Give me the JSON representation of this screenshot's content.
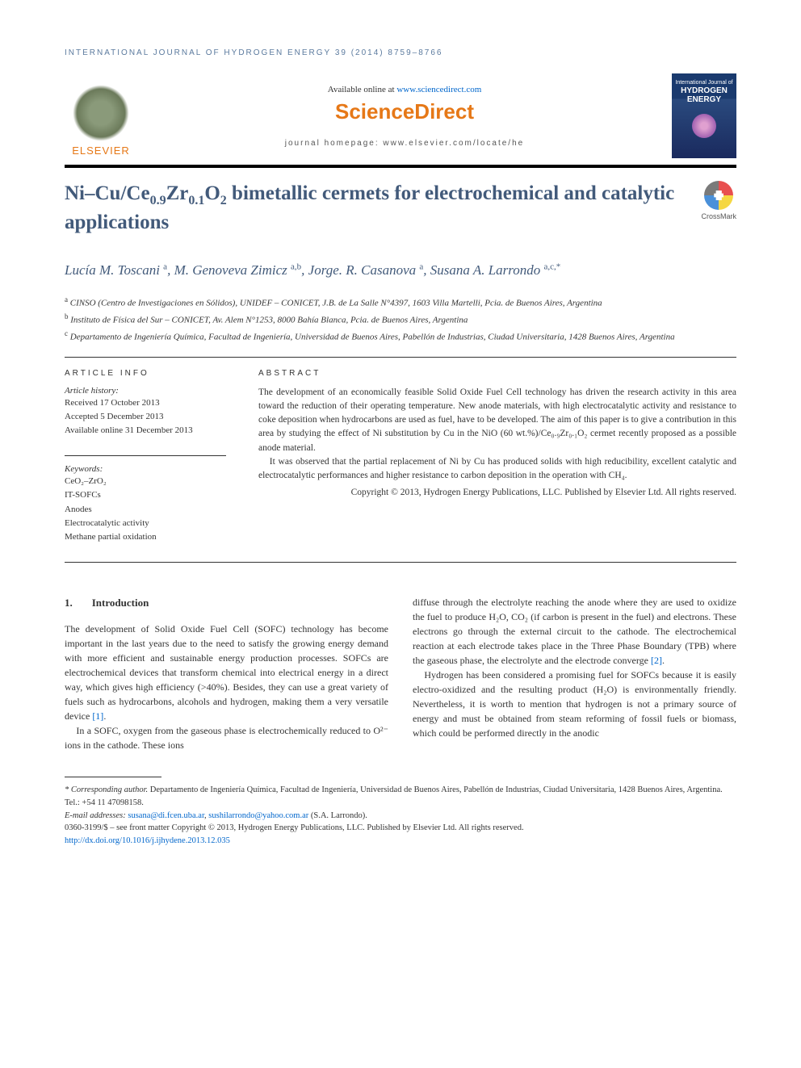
{
  "header": {
    "journal_ref": "INTERNATIONAL JOURNAL OF HYDROGEN ENERGY 39 (2014) 8759–8766",
    "available_prefix": "Available online at ",
    "available_link": "www.sciencedirect.com",
    "sciencedirect": "ScienceDirect",
    "homepage_label": "journal homepage: www.elsevier.com/locate/he",
    "elsevier": "ELSEVIER",
    "cover_top": "International Journal of",
    "cover_title1": "HYDROGEN",
    "cover_title2": "ENERGY"
  },
  "crossmark": {
    "label": "CrossMark"
  },
  "title": {
    "html": "Ni–Cu/Ce<sub>0.9</sub>Zr<sub>0.1</sub>O<sub>2</sub> bimetallic cermets for electrochemical and catalytic applications"
  },
  "authors_html": "Lucía M. Toscani <sup>a</sup>, M. Genoveva Zimicz <sup>a,b</sup>, Jorge. R. Casanova <sup>a</sup>, Susana A. Larrondo <sup>a,c,*</sup>",
  "affiliations": [
    "<sup>a</sup> CINSO (Centro de Investigaciones en Sólidos), UNIDEF – CONICET, J.B. de La Salle N°4397, 1603 Villa Martelli, Pcia. de Buenos Aires, Argentina",
    "<sup>b</sup> Instituto de Física del Sur – CONICET, Av. Alem N°1253, 8000 Bahía Blanca, Pcia. de Buenos Aires, Argentina",
    "<sup>c</sup> Departamento de Ingeniería Química, Facultad de Ingeniería, Universidad de Buenos Aires, Pabellón de Industrias, Ciudad Universitaria, 1428 Buenos Aires, Argentina"
  ],
  "article_info": {
    "heading": "ARTICLE INFO",
    "history_label": "Article history:",
    "received": "Received 17 October 2013",
    "accepted": "Accepted 5 December 2013",
    "online": "Available online 31 December 2013",
    "keywords_label": "Keywords:",
    "keywords": [
      "CeO₂–ZrO₂",
      "IT-SOFCs",
      "Anodes",
      "Electrocatalytic activity",
      "Methane partial oxidation"
    ]
  },
  "abstract": {
    "heading": "ABSTRACT",
    "p1": "The development of an economically feasible Solid Oxide Fuel Cell technology has driven the research activity in this area toward the reduction of their operating temperature. New anode materials, with high electrocatalytic activity and resistance to coke deposition when hydrocarbons are used as fuel, have to be developed. The aim of this paper is to give a contribution in this area by studying the effect of Ni substitution by Cu in the NiO (60 wt.%)/Ce₀.₉Zr₀.₁O₂ cermet recently proposed as a possible anode material.",
    "p2": "It was observed that the partial replacement of Ni by Cu has produced solids with high reducibility, excellent catalytic and electrocatalytic performances and higher resistance to carbon deposition in the operation with CH₄.",
    "copyright": "Copyright © 2013, Hydrogen Energy Publications, LLC. Published by Elsevier Ltd. All rights reserved."
  },
  "body": {
    "section_num": "1.",
    "section_title": "Introduction",
    "col1_p1": "The development of Solid Oxide Fuel Cell (SOFC) technology has become important in the last years due to the need to satisfy the growing energy demand with more efficient and sustainable energy production processes. SOFCs are electrochemical devices that transform chemical into electrical energy in a direct way, which gives high efficiency (>40%). Besides, they can use a great variety of fuels such as hydrocarbons, alcohols and hydrogen, making them a very versatile device ",
    "ref1": "[1]",
    "col1_p1_end": ".",
    "col1_p2": "In a SOFC, oxygen from the gaseous phase is electrochemically reduced to O²⁻ ions in the cathode. These ions",
    "col2_p1": "diffuse through the electrolyte reaching the anode where they are used to oxidize the fuel to produce H₂O, CO₂ (if carbon is present in the fuel) and electrons. These electrons go through the external circuit to the cathode. The electrochemical reaction at each electrode takes place in the Three Phase Boundary (TPB) where the gaseous phase, the electrolyte and the electrode converge ",
    "ref2": "[2]",
    "col2_p1_end": ".",
    "col2_p2": "Hydrogen has been considered a promising fuel for SOFCs because it is easily electro-oxidized and the resulting product (H₂O) is environmentally friendly. Nevertheless, it is worth to mention that hydrogen is not a primary source of energy and must be obtained from steam reforming of fossil fuels or biomass, which could be performed directly in the anodic"
  },
  "footer": {
    "corr_label": "* Corresponding author.",
    "corr_text": " Departamento de Ingeniería Química, Facultad de Ingeniería, Universidad de Buenos Aires, Pabellón de Industrias, Ciudad Universitaria, 1428 Buenos Aires, Argentina. Tel.: +54 11 47098158.",
    "email_label": "E-mail addresses: ",
    "email1": "susana@di.fcen.uba.ar",
    "email_sep": ", ",
    "email2": "sushilarrondo@yahoo.com.ar",
    "email_suffix": " (S.A. Larrondo).",
    "issn": "0360-3199/$ – see front matter Copyright © 2013, Hydrogen Energy Publications, LLC. Published by Elsevier Ltd. All rights reserved.",
    "doi": "http://dx.doi.org/10.1016/j.ijhydene.2013.12.035"
  },
  "colors": {
    "heading_blue": "#425a7a",
    "link_blue": "#0066cc",
    "elsevier_orange": "#e67817"
  }
}
